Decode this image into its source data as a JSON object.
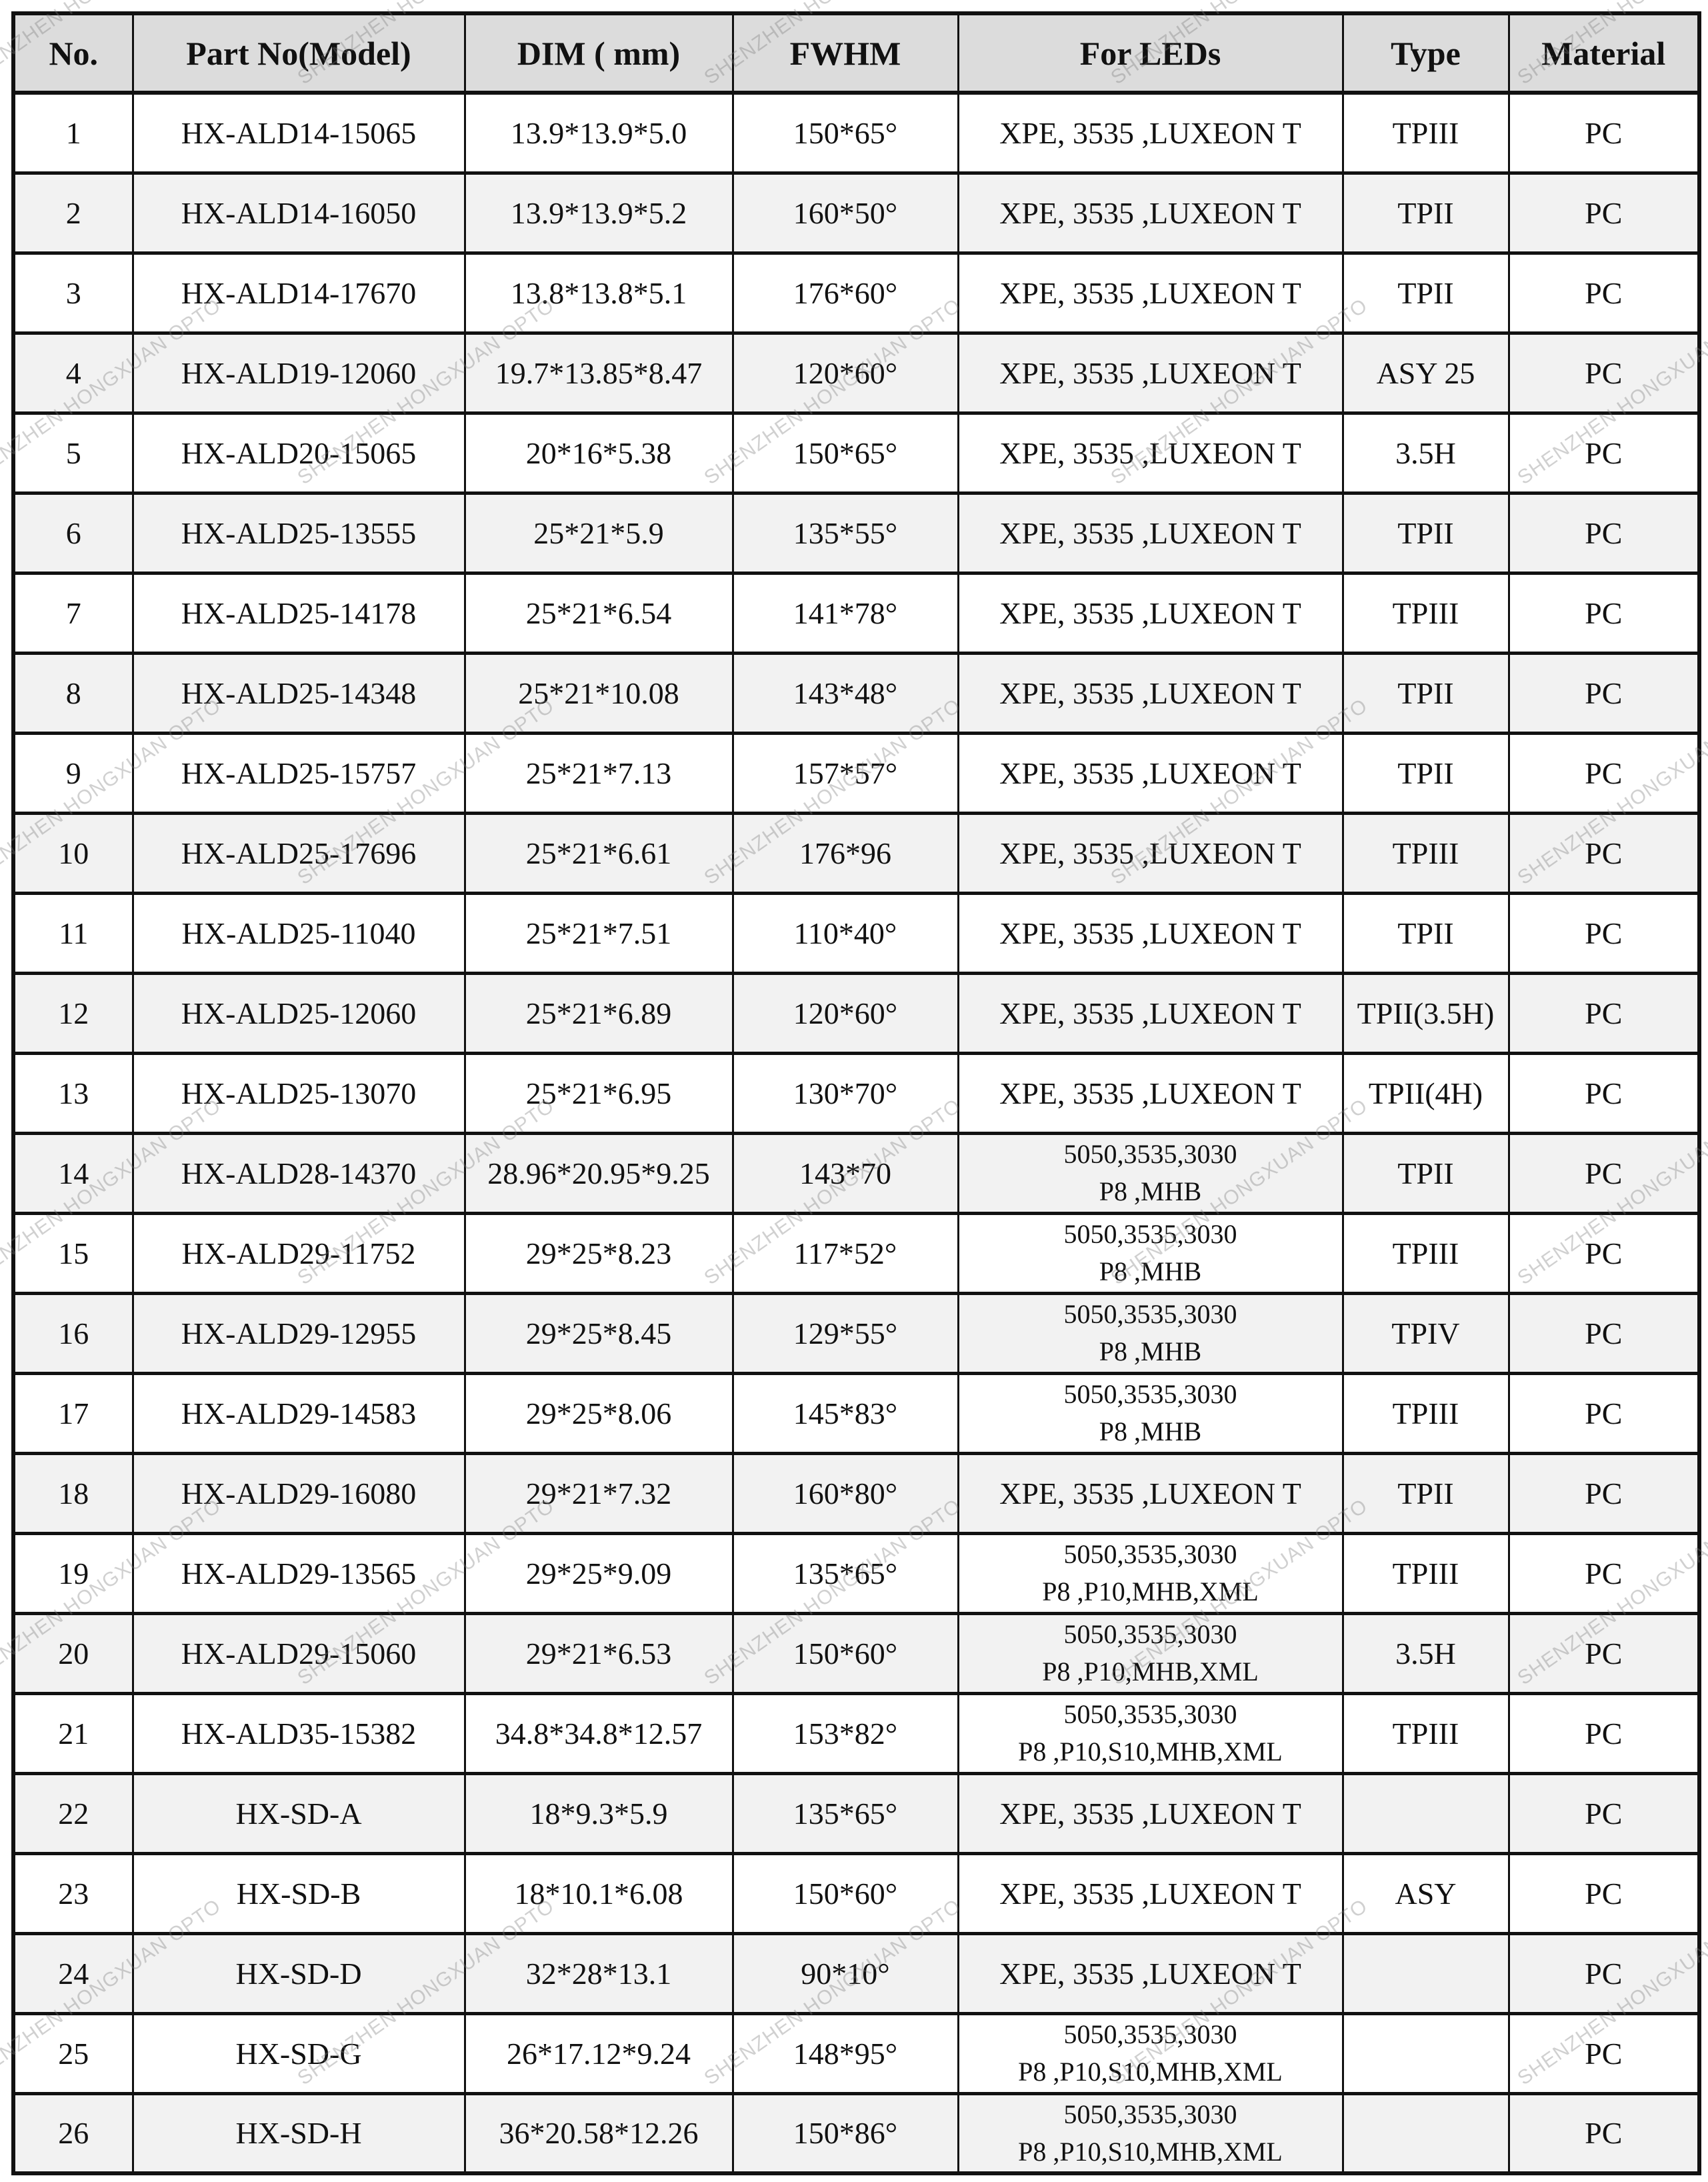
{
  "watermark": "SHENZHEN HONGXUAN OPTO",
  "headers": [
    "No.",
    "Part No(Model)",
    "DIM ( mm)",
    "FWHM",
    "For LEDs",
    "Type",
    "Material"
  ],
  "rows": [
    {
      "no": "1",
      "part": "HX-ALD14-15065",
      "dim": "13.9*13.9*5.0",
      "fwhm": "150*65°",
      "leds": [
        "XPE, 3535 ,LUXEON T"
      ],
      "type": "TPIII",
      "material": "PC"
    },
    {
      "no": "2",
      "part": "HX-ALD14-16050",
      "dim": "13.9*13.9*5.2",
      "fwhm": "160*50°",
      "leds": [
        "XPE, 3535 ,LUXEON T"
      ],
      "type": "TPII",
      "material": "PC"
    },
    {
      "no": "3",
      "part": "HX-ALD14-17670",
      "dim": "13.8*13.8*5.1",
      "fwhm": "176*60°",
      "leds": [
        "XPE, 3535 ,LUXEON T"
      ],
      "type": "TPII",
      "material": "PC"
    },
    {
      "no": "4",
      "part": "HX-ALD19-12060",
      "dim": "19.7*13.85*8.47",
      "fwhm": "120*60°",
      "leds": [
        "XPE, 3535 ,LUXEON T"
      ],
      "type": "ASY 25",
      "material": "PC"
    },
    {
      "no": "5",
      "part": "HX-ALD20-15065",
      "dim": "20*16*5.38",
      "fwhm": "150*65°",
      "leds": [
        "XPE, 3535 ,LUXEON T"
      ],
      "type": "3.5H",
      "material": "PC"
    },
    {
      "no": "6",
      "part": "HX-ALD25-13555",
      "dim": "25*21*5.9",
      "fwhm": "135*55°",
      "leds": [
        "XPE, 3535 ,LUXEON T"
      ],
      "type": "TPII",
      "material": "PC"
    },
    {
      "no": "7",
      "part": "HX-ALD25-14178",
      "dim": "25*21*6.54",
      "fwhm": "141*78°",
      "leds": [
        "XPE, 3535 ,LUXEON T"
      ],
      "type": "TPIII",
      "material": "PC"
    },
    {
      "no": "8",
      "part": "HX-ALD25-14348",
      "dim": "25*21*10.08",
      "fwhm": "143*48°",
      "leds": [
        "XPE, 3535 ,LUXEON T"
      ],
      "type": "TPII",
      "material": "PC"
    },
    {
      "no": "9",
      "part": "HX-ALD25-15757",
      "dim": "25*21*7.13",
      "fwhm": "157*57°",
      "leds": [
        "XPE, 3535 ,LUXEON T"
      ],
      "type": "TPII",
      "material": "PC"
    },
    {
      "no": "10",
      "part": "HX-ALD25-17696",
      "dim": "25*21*6.61",
      "fwhm": "176*96",
      "leds": [
        "XPE, 3535 ,LUXEON T"
      ],
      "type": "TPIII",
      "material": "PC"
    },
    {
      "no": "11",
      "part": "HX-ALD25-11040",
      "dim": "25*21*7.51",
      "fwhm": "110*40°",
      "leds": [
        "XPE, 3535 ,LUXEON T"
      ],
      "type": "TPII",
      "material": "PC"
    },
    {
      "no": "12",
      "part": "HX-ALD25-12060",
      "dim": "25*21*6.89",
      "fwhm": "120*60°",
      "leds": [
        "XPE, 3535 ,LUXEON T"
      ],
      "type": "TPII(3.5H)",
      "material": "PC"
    },
    {
      "no": "13",
      "part": "HX-ALD25-13070",
      "dim": "25*21*6.95",
      "fwhm": "130*70°",
      "leds": [
        "XPE, 3535 ,LUXEON T"
      ],
      "type": "TPII(4H)",
      "material": "PC"
    },
    {
      "no": "14",
      "part": "HX-ALD28-14370",
      "dim": "28.96*20.95*9.25",
      "fwhm": "143*70",
      "leds": [
        "5050,3535,3030",
        "P8 ,MHB"
      ],
      "type": "TPII",
      "material": "PC"
    },
    {
      "no": "15",
      "part": "HX-ALD29-11752",
      "dim": "29*25*8.23",
      "fwhm": "117*52°",
      "leds": [
        "5050,3535,3030",
        "P8 ,MHB"
      ],
      "type": "TPIII",
      "material": "PC"
    },
    {
      "no": "16",
      "part": "HX-ALD29-12955",
      "dim": "29*25*8.45",
      "fwhm": "129*55°",
      "leds": [
        "5050,3535,3030",
        "P8 ,MHB"
      ],
      "type": "TPIV",
      "material": "PC"
    },
    {
      "no": "17",
      "part": "HX-ALD29-14583",
      "dim": "29*25*8.06",
      "fwhm": "145*83°",
      "leds": [
        "5050,3535,3030",
        "P8 ,MHB"
      ],
      "type": "TPIII",
      "material": "PC"
    },
    {
      "no": "18",
      "part": "HX-ALD29-16080",
      "dim": "29*21*7.32",
      "fwhm": "160*80°",
      "leds": [
        "XPE, 3535 ,LUXEON T"
      ],
      "type": "TPII",
      "material": "PC"
    },
    {
      "no": "19",
      "part": "HX-ALD29-13565",
      "dim": "29*25*9.09",
      "fwhm": "135*65°",
      "leds": [
        "5050,3535,3030",
        "P8 ,P10,MHB,XML"
      ],
      "type": "TPIII",
      "material": "PC"
    },
    {
      "no": "20",
      "part": "HX-ALD29-15060",
      "dim": "29*21*6.53",
      "fwhm": "150*60°",
      "leds": [
        "5050,3535,3030",
        "P8 ,P10,MHB,XML"
      ],
      "type": "3.5H",
      "material": "PC"
    },
    {
      "no": "21",
      "part": "HX-ALD35-15382",
      "dim": "34.8*34.8*12.57",
      "fwhm": "153*82°",
      "leds": [
        "5050,3535,3030",
        "P8 ,P10,S10,MHB,XML"
      ],
      "type": "TPIII",
      "material": "PC"
    },
    {
      "no": "22",
      "part": "HX-SD-A",
      "dim": "18*9.3*5.9",
      "fwhm": "135*65°",
      "leds": [
        "XPE, 3535 ,LUXEON T"
      ],
      "type": "",
      "material": "PC"
    },
    {
      "no": "23",
      "part": "HX-SD-B",
      "dim": "18*10.1*6.08",
      "fwhm": "150*60°",
      "leds": [
        "XPE, 3535 ,LUXEON T"
      ],
      "type": "ASY",
      "material": "PC"
    },
    {
      "no": "24",
      "part": "HX-SD-D",
      "dim": "32*28*13.1",
      "fwhm": "90*10°",
      "leds": [
        "XPE, 3535 ,LUXEON T"
      ],
      "type": "",
      "material": "PC"
    },
    {
      "no": "25",
      "part": "HX-SD-G",
      "dim": "26*17.12*9.24",
      "fwhm": "148*95°",
      "leds": [
        "5050,3535,3030",
        "P8 ,P10,S10,MHB,XML"
      ],
      "type": "",
      "material": "PC"
    },
    {
      "no": "26",
      "part": "HX-SD-H",
      "dim": "36*20.58*12.26",
      "fwhm": "150*86°",
      "leds": [
        "5050,3535,3030",
        "P8 ,P10,S10,MHB,XML"
      ],
      "type": "",
      "material": "PC"
    }
  ]
}
